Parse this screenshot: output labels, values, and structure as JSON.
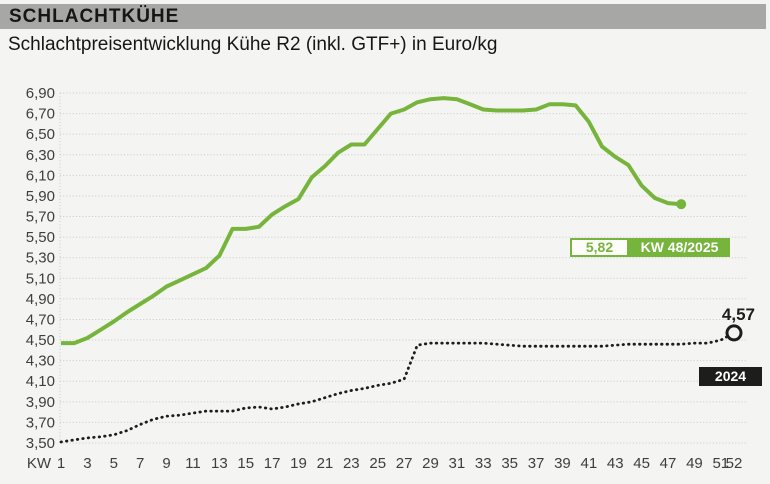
{
  "header": {
    "title": "SCHLACHTKÜHE",
    "subtitle": "Schlachtpreisentwicklung Kühe R2 (inkl. GTF+) in Euro/kg"
  },
  "annotations": {
    "latest_value": "5,82",
    "latest_week_label": "KW 48/2025",
    "prev_year_value": "4,57",
    "prev_year_label": "2024"
  },
  "colors": {
    "background": "#f4f4f2",
    "header_bar": "#a7a7a5",
    "accent_green": "#77b43c",
    "line_black": "#1d1d1b",
    "grid": "#c8c8c6",
    "axis_text": "#3e3e3c"
  },
  "chart_data": {
    "type": "line",
    "title": "Schlachtpreisentwicklung Kühe R2 (inkl. GTF+) in Euro/kg",
    "unit": "Euro/kg",
    "x_axis_label": "KW",
    "x_ticks": [
      "1",
      "3",
      "5",
      "7",
      "9",
      "11",
      "13",
      "15",
      "17",
      "19",
      "21",
      "23",
      "25",
      "27",
      "29",
      "31",
      "33",
      "35",
      "37",
      "39",
      "41",
      "43",
      "45",
      "47",
      "49",
      "51",
      "52"
    ],
    "y_ticks": [
      "6,90",
      "6,70",
      "6,50",
      "6,30",
      "6,10",
      "5,90",
      "5,70",
      "5,50",
      "5,30",
      "5,10",
      "4,90",
      "4,70",
      "4,50",
      "4,30",
      "4,10",
      "3,90",
      "3,70",
      "3,50"
    ],
    "ylim": [
      3.5,
      6.9
    ],
    "xlim": [
      1,
      52
    ],
    "grid": "horizontal-dotted",
    "x_start_week": 1,
    "series": [
      {
        "name": "2025",
        "label": "KW 48/2025",
        "style": "solid",
        "color": "#77b43c",
        "end_marker": "filled-dot",
        "last_week": 48,
        "last_value": 5.82,
        "values": [
          4.47,
          4.47,
          4.52,
          4.6,
          4.68,
          4.77,
          4.85,
          4.93,
          5.02,
          5.08,
          5.14,
          5.2,
          5.32,
          5.58,
          5.58,
          5.6,
          5.72,
          5.8,
          5.87,
          6.08,
          6.19,
          6.32,
          6.4,
          6.4,
          6.55,
          6.7,
          6.74,
          6.81,
          6.84,
          6.85,
          6.84,
          6.79,
          6.74,
          6.73,
          6.73,
          6.73,
          6.74,
          6.79,
          6.79,
          6.78,
          6.62,
          6.38,
          6.28,
          6.2,
          6.0,
          5.88,
          5.83,
          5.82
        ]
      },
      {
        "name": "2024",
        "label": "2024",
        "style": "dotted",
        "color": "#1d1d1b",
        "end_marker": "open-circle",
        "last_week": 52,
        "last_value": 4.57,
        "values": [
          3.51,
          3.53,
          3.55,
          3.56,
          3.58,
          3.62,
          3.68,
          3.73,
          3.76,
          3.77,
          3.79,
          3.81,
          3.81,
          3.81,
          3.84,
          3.85,
          3.83,
          3.85,
          3.88,
          3.9,
          3.94,
          3.98,
          4.01,
          4.03,
          4.06,
          4.08,
          4.12,
          4.45,
          4.47,
          4.47,
          4.47,
          4.47,
          4.47,
          4.46,
          4.45,
          4.44,
          4.44,
          4.44,
          4.44,
          4.44,
          4.44,
          4.44,
          4.45,
          4.46,
          4.46,
          4.46,
          4.46,
          4.46,
          4.47,
          4.47,
          4.5,
          4.57
        ]
      }
    ]
  }
}
